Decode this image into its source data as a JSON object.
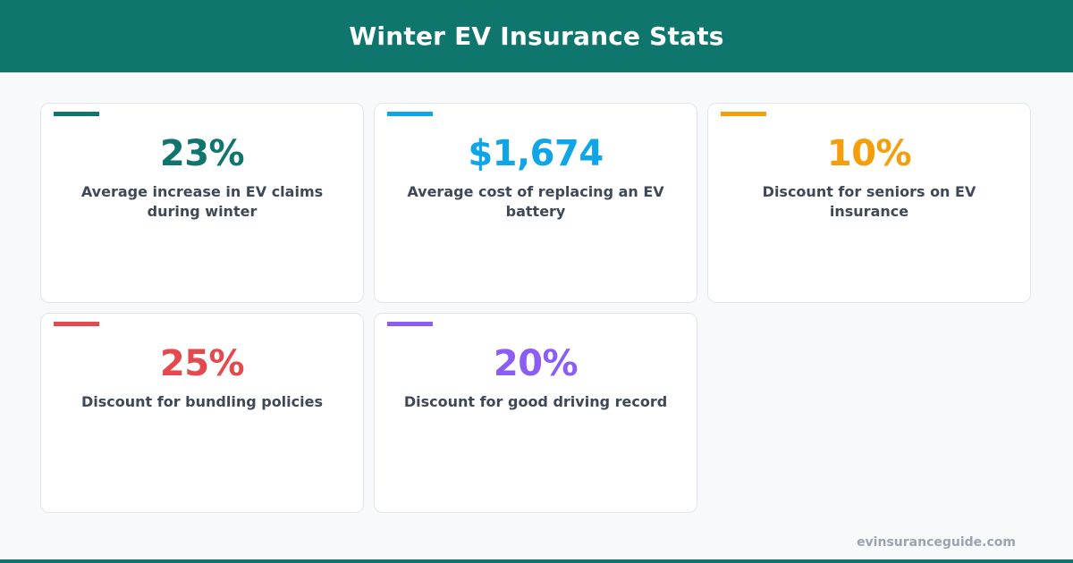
{
  "header": {
    "title": "Winter EV Insurance Stats"
  },
  "stats": [
    {
      "value": "23%",
      "label": "Average increase in EV claims during winter",
      "color": "#0f766e"
    },
    {
      "value": "$1,674",
      "label": "Average cost of replacing an EV battery",
      "color": "#0ea5e9"
    },
    {
      "value": "10%",
      "label": "Discount for seniors on EV insurance",
      "color": "#f59e0b"
    },
    {
      "value": "25%",
      "label": "Discount for bundling policies",
      "color": "#e5484d"
    },
    {
      "value": "20%",
      "label": "Discount for good driving record",
      "color": "#8b5cf6"
    }
  ],
  "footer": {
    "site": "evinsuranceguide.com"
  },
  "theme": {
    "brand": "#0f766e",
    "background": "#f8f9fb",
    "label_color": "#3f4856",
    "footer_text": "#9aa3ae"
  }
}
